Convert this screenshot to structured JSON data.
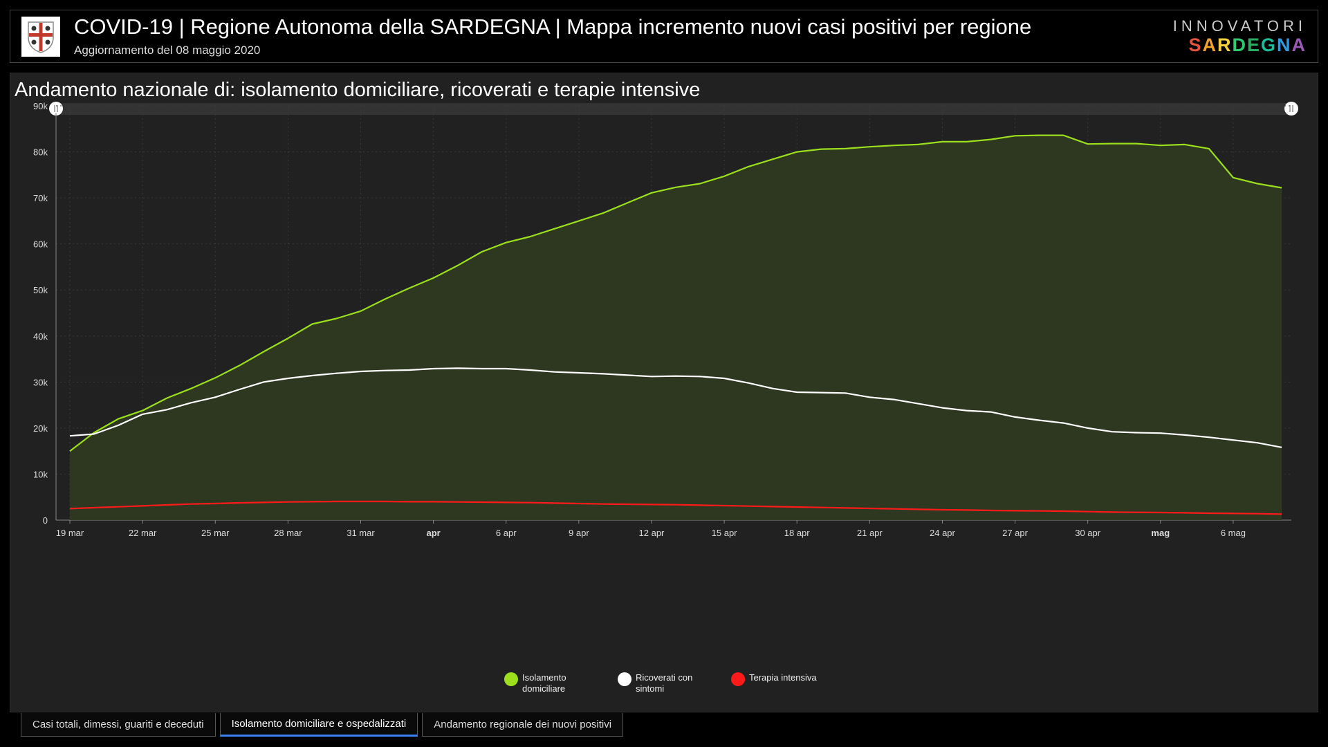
{
  "header": {
    "title": "COVID-19 | Regione Autonoma della SARDEGNA | Mappa incremento nuovi casi positivi per regione",
    "subtitle": "Aggiornamento del 08 maggio 2020",
    "brand_top": "INNOVATORI",
    "brand_bottom": "SARDEGNA",
    "brand_colors": [
      "#e5533d",
      "#f2a22c",
      "#f4d03f",
      "#2ecc71",
      "#27ae60",
      "#1abc9c",
      "#3498db",
      "#9b59b6"
    ]
  },
  "panel": {
    "title": "Andamento nazionale di: isolamento domiciliare, ricoverati e terapie intensive"
  },
  "tabs": [
    {
      "label": "Casi totali, dimessi, guariti e deceduti",
      "active": false
    },
    {
      "label": "Isolamento domiciliare e ospedalizzati",
      "active": true
    },
    {
      "label": "Andamento regionale dei nuovi positivi",
      "active": false
    }
  ],
  "chart_data": {
    "type": "area",
    "x_tick_labels": [
      "19 mar",
      "22 mar",
      "25 mar",
      "28 mar",
      "31 mar",
      "apr",
      "6 apr",
      "9 apr",
      "12 apr",
      "15 apr",
      "18 apr",
      "21 apr",
      "24 apr",
      "27 apr",
      "30 apr",
      "mag",
      "6 mag"
    ],
    "x_start": "2020-03-19",
    "x_end": "2020-05-08",
    "ylim": [
      0,
      90000
    ],
    "y_ticks": [
      "0",
      "10k",
      "20k",
      "30k",
      "40k",
      "50k",
      "60k",
      "70k",
      "80k",
      "90k"
    ],
    "grid": true,
    "legend_position": "bottom-center",
    "series": [
      {
        "name": "Isolamento domiciliare",
        "color": "#9cdf1d",
        "fill": "#2f3a22",
        "values": [
          15000,
          19000,
          22000,
          23800,
          26500,
          28600,
          30900,
          33600,
          36600,
          39500,
          42600,
          43800,
          45400,
          48000,
          50400,
          52600,
          55300,
          58300,
          60300,
          61600,
          63300,
          65000,
          66700,
          68900,
          71100,
          72300,
          73100,
          74700,
          76800,
          78400,
          80000,
          80600,
          80700,
          81100,
          81400,
          81600,
          82200,
          82200,
          82700,
          83500,
          83600,
          83600,
          81700,
          81800,
          81800,
          81400,
          81600,
          80700,
          74400,
          73100,
          72200
        ]
      },
      {
        "name": "Ricoverati con sintomi",
        "color": "#ffffff",
        "values": [
          18300,
          18700,
          20600,
          23000,
          24000,
          25500,
          26700,
          28400,
          30000,
          30800,
          31400,
          31900,
          32300,
          32500,
          32600,
          32900,
          33000,
          32900,
          32900,
          32600,
          32200,
          32000,
          31800,
          31500,
          31200,
          31300,
          31200,
          30800,
          29800,
          28600,
          27800,
          27700,
          27600,
          26700,
          26200,
          25300,
          24400,
          23800,
          23500,
          22400,
          21700,
          21100,
          20000,
          19200,
          19000,
          18900,
          18500,
          18000,
          17400,
          16800,
          15800
        ]
      },
      {
        "name": "Terapia intensiva",
        "color": "#ff1a1a",
        "values": [
          2500,
          2700,
          2900,
          3100,
          3300,
          3500,
          3600,
          3750,
          3850,
          3950,
          4000,
          4050,
          4050,
          4050,
          4000,
          4000,
          3950,
          3900,
          3850,
          3800,
          3700,
          3600,
          3500,
          3450,
          3400,
          3350,
          3250,
          3150,
          3050,
          2950,
          2850,
          2750,
          2650,
          2550,
          2450,
          2350,
          2250,
          2200,
          2100,
          2050,
          2000,
          1950,
          1850,
          1750,
          1700,
          1650,
          1600,
          1500,
          1450,
          1400,
          1300
        ]
      }
    ]
  }
}
